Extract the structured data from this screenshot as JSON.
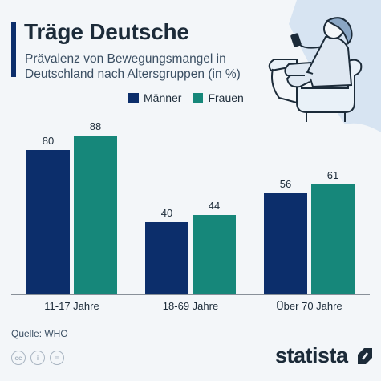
{
  "header": {
    "title": "Träge Deutsche",
    "subtitle": "Prävalenz von Bewegungsmangel in Deutschland nach Altersgruppen (in %)"
  },
  "legend": [
    {
      "label": "Männer",
      "color": "#0c2e6b"
    },
    {
      "label": "Frauen",
      "color": "#16877a"
    }
  ],
  "chart_data": {
    "type": "bar",
    "categories": [
      "11-17 Jahre",
      "18-69 Jahre",
      "Über 70 Jahre"
    ],
    "series": [
      {
        "name": "Männer",
        "values": [
          80,
          40,
          56
        ],
        "color": "#0c2e6b"
      },
      {
        "name": "Frauen",
        "values": [
          88,
          44,
          61
        ],
        "color": "#16877a"
      }
    ],
    "title": "Träge Deutsche",
    "subtitle": "Prävalenz von Bewegungsmangel in Deutschland nach Altersgruppen (in %)",
    "ylim": [
      0,
      100
    ],
    "grid": false,
    "legend_position": "top-right"
  },
  "footer": {
    "source": "Quelle: WHO",
    "brand": "statista",
    "license_icons": [
      "cc-icon",
      "by-icon",
      "nd-icon"
    ]
  }
}
